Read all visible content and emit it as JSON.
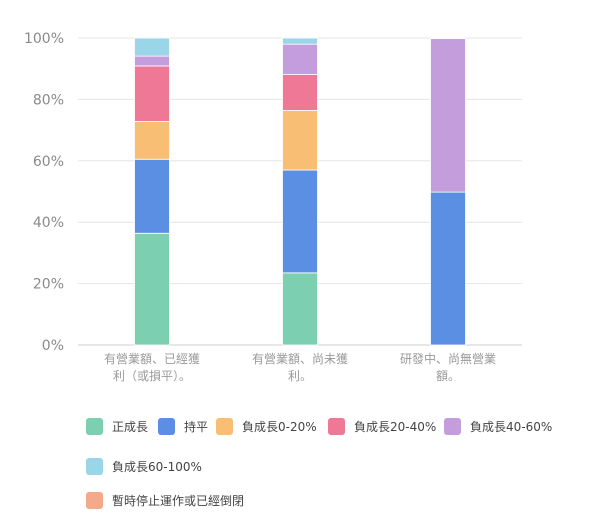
{
  "chart_data": {
    "type": "bar",
    "stacked": true,
    "categories": [
      [
        "有營業額、已經獲",
        "利（或損平）。"
      ],
      [
        "有營業額、尚未獲",
        "利。"
      ],
      [
        "研發中、尚無營業",
        "額。"
      ]
    ],
    "y_ticks": [
      "0%",
      "20%",
      "40%",
      "60%",
      "80%",
      "100%"
    ],
    "ylim": [
      0,
      100
    ],
    "grid": true,
    "legend_position": "bottom",
    "series": [
      {
        "name": "正成長",
        "color": "#7ccfb1",
        "values": [
          36.4,
          23.5,
          0
        ]
      },
      {
        "name": "持平",
        "color": "#5b8fe3",
        "values": [
          24.1,
          33.5,
          49.8
        ]
      },
      {
        "name": "負成長0-20%",
        "color": "#f7be74",
        "values": [
          12.3,
          19.4,
          0
        ]
      },
      {
        "name": "負成長20-40%",
        "color": "#ef7897",
        "values": [
          18.1,
          11.7,
          0
        ]
      },
      {
        "name": "負成長40-60%",
        "color": "#c49edc",
        "values": [
          3.2,
          9.9,
          50.0
        ]
      },
      {
        "name": "負成長60-100%",
        "color": "#9ad5e8",
        "values": [
          5.9,
          2.0,
          0.2
        ]
      },
      {
        "name": "暫時停止運作或已經倒閉",
        "color": "#f4a98a",
        "values": [
          0,
          0,
          0
        ]
      }
    ]
  }
}
